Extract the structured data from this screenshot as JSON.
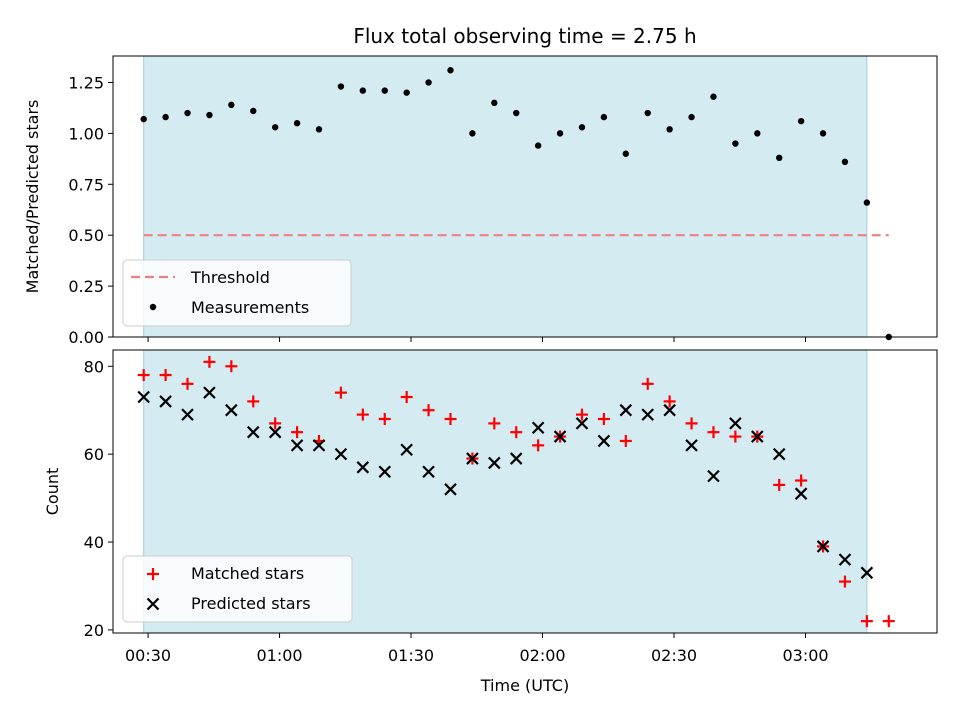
{
  "chart_data": [
    {
      "type": "scatter",
      "title": "Flux total observing time = 2.75 h",
      "ylabel": "Matched/Predicted stars",
      "ylim": [
        0,
        1.38
      ],
      "yticks": [
        "0.00",
        "0.25",
        "0.50",
        "0.75",
        "1.00",
        "1.25"
      ],
      "xlim": [
        "00:22",
        "03:30"
      ],
      "shaded_span": [
        "00:29",
        "03:14"
      ],
      "threshold": {
        "name": "Threshold",
        "value": 0.5,
        "x_range": [
          "00:29",
          "03:19"
        ],
        "color": "#f08080"
      },
      "legend": {
        "placement": "lower-left",
        "entries": [
          "Threshold",
          "Measurements"
        ]
      },
      "series": [
        {
          "name": "Measurements",
          "color": "#000000",
          "x": [
            "00:29",
            "00:34",
            "00:39",
            "00:44",
            "00:49",
            "00:54",
            "00:59",
            "01:04",
            "01:09",
            "01:14",
            "01:19",
            "01:24",
            "01:29",
            "01:34",
            "01:39",
            "01:44",
            "01:49",
            "01:54",
            "01:59",
            "02:04",
            "02:09",
            "02:14",
            "02:19",
            "02:24",
            "02:29",
            "02:34",
            "02:39",
            "02:44",
            "02:49",
            "02:54",
            "02:59",
            "03:04",
            "03:09",
            "03:14",
            "03:19"
          ],
          "values": [
            1.07,
            1.08,
            1.1,
            1.09,
            1.14,
            1.11,
            1.03,
            1.05,
            1.02,
            1.23,
            1.21,
            1.21,
            1.2,
            1.25,
            1.31,
            1.0,
            1.15,
            1.1,
            0.94,
            1.0,
            1.03,
            1.08,
            0.9,
            1.1,
            1.02,
            1.08,
            1.18,
            0.95,
            1.0,
            0.88,
            1.06,
            1.0,
            0.86,
            0.66,
            0.0
          ]
        }
      ]
    },
    {
      "type": "scatter",
      "xlabel": "Time (UTC)",
      "ylabel": "Count",
      "ylim": [
        19.3,
        83.7
      ],
      "yticks": [
        "20",
        "40",
        "60",
        "80"
      ],
      "xticks": [
        "00:30",
        "01:00",
        "01:30",
        "02:00",
        "02:30",
        "03:00"
      ],
      "xlim": [
        "00:22",
        "03:30"
      ],
      "shaded_span": [
        "00:29",
        "03:14"
      ],
      "legend": {
        "placement": "lower-left",
        "entries": [
          "Matched stars",
          "Predicted stars"
        ]
      },
      "series": [
        {
          "name": "Matched stars",
          "marker": "plus",
          "color": "#ff0000",
          "x": [
            "00:29",
            "00:34",
            "00:39",
            "00:44",
            "00:49",
            "00:54",
            "00:59",
            "01:04",
            "01:09",
            "01:14",
            "01:19",
            "01:24",
            "01:29",
            "01:34",
            "01:39",
            "01:44",
            "01:49",
            "01:54",
            "01:59",
            "02:04",
            "02:09",
            "02:14",
            "02:19",
            "02:24",
            "02:29",
            "02:34",
            "02:39",
            "02:44",
            "02:49",
            "02:54",
            "02:59",
            "03:04",
            "03:09",
            "03:14",
            "03:19"
          ],
          "values": [
            78,
            78,
            76,
            81,
            80,
            72,
            67,
            65,
            63,
            74,
            69,
            68,
            73,
            70,
            68,
            59,
            67,
            65,
            62,
            64,
            69,
            68,
            63,
            76,
            72,
            67,
            65,
            64,
            64,
            53,
            54,
            39,
            31,
            22,
            22
          ]
        },
        {
          "name": "Predicted stars",
          "marker": "x",
          "color": "#000000",
          "x": [
            "00:29",
            "00:34",
            "00:39",
            "00:44",
            "00:49",
            "00:54",
            "00:59",
            "01:04",
            "01:09",
            "01:14",
            "01:19",
            "01:24",
            "01:29",
            "01:34",
            "01:39",
            "01:44",
            "01:49",
            "01:54",
            "01:59",
            "02:04",
            "02:09",
            "02:14",
            "02:19",
            "02:24",
            "02:29",
            "02:34",
            "02:39",
            "02:44",
            "02:49",
            "02:54",
            "02:59",
            "03:04",
            "03:09",
            "03:14"
          ],
          "values": [
            73,
            72,
            69,
            74,
            70,
            65,
            65,
            62,
            62,
            60,
            57,
            56,
            61,
            56,
            52,
            59,
            58,
            59,
            66,
            64,
            67,
            63,
            70,
            69,
            70,
            62,
            55,
            67,
            64,
            60,
            51,
            39,
            36,
            33
          ]
        }
      ]
    }
  ],
  "colors": {
    "shade": "#add8e6"
  }
}
